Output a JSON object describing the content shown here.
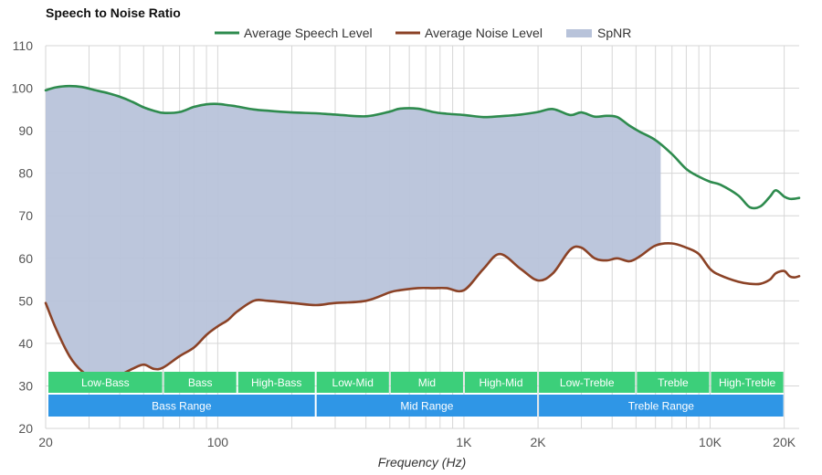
{
  "chart_data": {
    "type": "line",
    "title": "Speech to Noise Ratio",
    "xlabel": "Frequency (Hz)",
    "ylabel": "",
    "xscale": "log",
    "xlim": [
      20,
      23000
    ],
    "ylim": [
      20,
      110
    ],
    "y_ticks": [
      20,
      30,
      40,
      50,
      60,
      70,
      80,
      90,
      100,
      110
    ],
    "x_ticks": [
      {
        "value": 20,
        "label": "20"
      },
      {
        "value": 100,
        "label": "100"
      },
      {
        "value": 1000,
        "label": "1K"
      },
      {
        "value": 2000,
        "label": "2K"
      },
      {
        "value": 10000,
        "label": "10K"
      },
      {
        "value": 20000,
        "label": "20K"
      }
    ],
    "grid": true,
    "legend": {
      "position": "top-center",
      "entries": [
        {
          "name": "Average Speech Level",
          "kind": "line",
          "color": "#2e8b4e"
        },
        {
          "name": "Average Noise Level",
          "kind": "line",
          "color": "#8b4226"
        },
        {
          "name": "SpNR",
          "kind": "area",
          "color": "#b8c3da"
        }
      ]
    },
    "series": [
      {
        "name": "Average Speech Level",
        "color": "#2e8b4e",
        "x": [
          20,
          22,
          25,
          28,
          32,
          36,
          40,
          45,
          50,
          55,
          60,
          70,
          80,
          90,
          100,
          110,
          120,
          140,
          160,
          200,
          250,
          300,
          400,
          500,
          550,
          650,
          750,
          850,
          1000,
          1200,
          1400,
          1700,
          2000,
          2300,
          2700,
          3000,
          3400,
          3800,
          4200,
          4700,
          5200,
          6000,
          7000,
          8000,
          9000,
          10000,
          11000,
          13000,
          14500,
          16000,
          17500,
          18500,
          20000,
          21000,
          22000,
          23000
        ],
        "values": [
          99.5,
          100.2,
          100.5,
          100.3,
          99.5,
          98.8,
          98.0,
          96.8,
          95.5,
          94.7,
          94.2,
          94.4,
          95.6,
          96.2,
          96.3,
          96.0,
          95.7,
          95.0,
          94.7,
          94.3,
          94.1,
          93.8,
          93.4,
          94.5,
          95.2,
          95.2,
          94.4,
          94.0,
          93.7,
          93.2,
          93.4,
          93.8,
          94.4,
          95.1,
          93.7,
          94.3,
          93.3,
          93.5,
          93.2,
          91.2,
          89.7,
          87.8,
          84.5,
          81.0,
          79.2,
          78.0,
          77.3,
          74.8,
          72.0,
          72.2,
          74.5,
          76.0,
          74.5,
          74.0,
          74.0,
          74.2
        ]
      },
      {
        "name": "Average Noise Level",
        "color": "#8b4226",
        "x": [
          20,
          22,
          25,
          28,
          32,
          36,
          40,
          45,
          50,
          55,
          60,
          70,
          80,
          90,
          100,
          110,
          120,
          140,
          160,
          200,
          250,
          300,
          400,
          500,
          550,
          650,
          750,
          850,
          1000,
          1200,
          1400,
          1700,
          2000,
          2300,
          2700,
          3000,
          3400,
          3800,
          4200,
          4700,
          5200,
          6000,
          7000,
          8000,
          9000,
          10000,
          11000,
          13000,
          14500,
          16000,
          17500,
          18500,
          20000,
          21000,
          22000,
          23000
        ],
        "values": [
          49.5,
          43.5,
          37.0,
          33.5,
          31.5,
          31.5,
          32.5,
          34.0,
          35.0,
          34.0,
          34.3,
          37.0,
          39.0,
          42.0,
          44.0,
          45.5,
          47.5,
          50.0,
          50.0,
          49.5,
          49.0,
          49.5,
          50.0,
          52.0,
          52.5,
          53.0,
          53.0,
          53.0,
          52.5,
          57.5,
          61.0,
          57.5,
          54.8,
          56.5,
          62.0,
          62.5,
          60.0,
          59.5,
          60.0,
          59.3,
          60.5,
          63.0,
          63.5,
          62.5,
          61.0,
          57.5,
          56.0,
          54.5,
          54.0,
          54.0,
          55.0,
          56.5,
          57.0,
          55.8,
          55.5,
          55.8
        ]
      }
    ],
    "spnr_area": {
      "name": "SpNR",
      "color": "#b8c3da",
      "x_range": [
        20,
        6300
      ]
    },
    "bands": [
      {
        "label": "Low-Bass",
        "from": 20,
        "to": 60,
        "row": 1,
        "color": "#3ccf7a"
      },
      {
        "label": "Bass",
        "from": 60,
        "to": 120,
        "row": 1,
        "color": "#3ccf7a"
      },
      {
        "label": "High-Bass",
        "from": 120,
        "to": 250,
        "row": 1,
        "color": "#3ccf7a"
      },
      {
        "label": "Low-Mid",
        "from": 250,
        "to": 500,
        "row": 1,
        "color": "#3ccf7a"
      },
      {
        "label": "Mid",
        "from": 500,
        "to": 1000,
        "row": 1,
        "color": "#3ccf7a"
      },
      {
        "label": "High-Mid",
        "from": 1000,
        "to": 2000,
        "row": 1,
        "color": "#3ccf7a"
      },
      {
        "label": "Low-Treble",
        "from": 2000,
        "to": 5000,
        "row": 1,
        "color": "#3ccf7a"
      },
      {
        "label": "Treble",
        "from": 5000,
        "to": 10000,
        "row": 1,
        "color": "#3ccf7a"
      },
      {
        "label": "High-Treble",
        "from": 10000,
        "to": 20000,
        "row": 1,
        "color": "#3ccf7a"
      },
      {
        "label": "Bass Range",
        "from": 20,
        "to": 250,
        "row": 2,
        "color": "#2f96e6"
      },
      {
        "label": "Mid Range",
        "from": 250,
        "to": 2000,
        "row": 2,
        "color": "#2f96e6"
      },
      {
        "label": "Treble Range",
        "from": 2000,
        "to": 20000,
        "row": 2,
        "color": "#2f96e6"
      }
    ]
  }
}
